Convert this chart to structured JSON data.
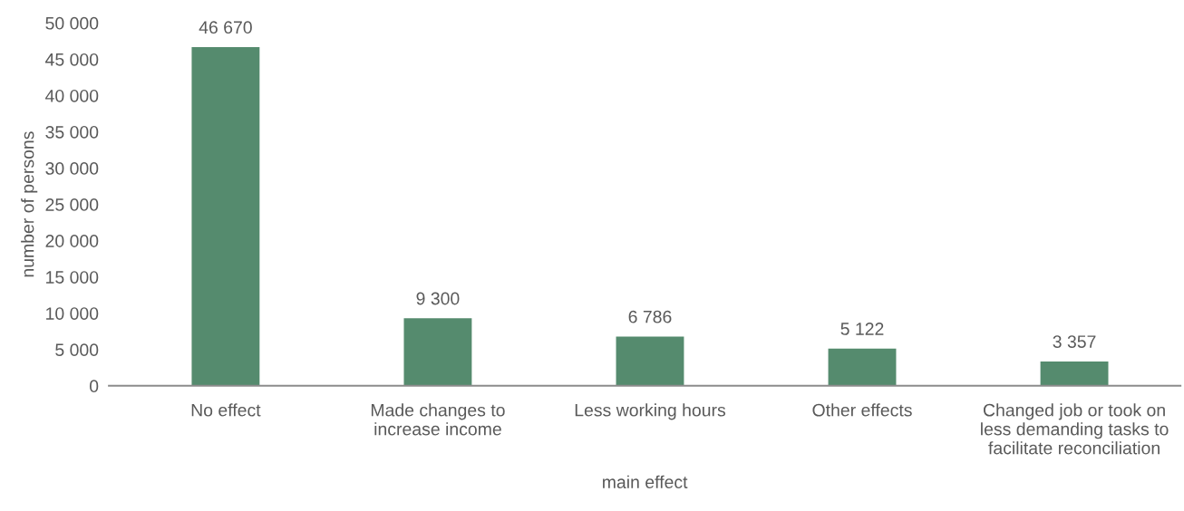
{
  "chart_data": {
    "type": "bar",
    "xlabel": "main effect",
    "ylabel": "number of persons",
    "categories": [
      "No effect",
      "Made changes to\nincrease income",
      "Less working hours",
      "Other effects",
      "Changed job or took on\nless demanding tasks to\nfacilitate reconciliation"
    ],
    "values": [
      46670,
      9300,
      6786,
      5122,
      3357
    ],
    "value_labels": [
      "46 670",
      "9 300",
      "6 786",
      "5 122",
      "3 357"
    ],
    "color": "#558b6e",
    "ylim": [
      0,
      50000
    ],
    "yticks": [
      {
        "value": 0,
        "label": "0"
      },
      {
        "value": 5000,
        "label": "5 000"
      },
      {
        "value": 10000,
        "label": "10 000"
      },
      {
        "value": 15000,
        "label": "15 000"
      },
      {
        "value": 20000,
        "label": "20 000"
      },
      {
        "value": 25000,
        "label": "25 000"
      },
      {
        "value": 30000,
        "label": "30 000"
      },
      {
        "value": 35000,
        "label": "35 000"
      },
      {
        "value": 40000,
        "label": "40 000"
      },
      {
        "value": 45000,
        "label": "45 000"
      },
      {
        "value": 50000,
        "label": "50 000"
      }
    ],
    "grid": false,
    "legend": false
  }
}
